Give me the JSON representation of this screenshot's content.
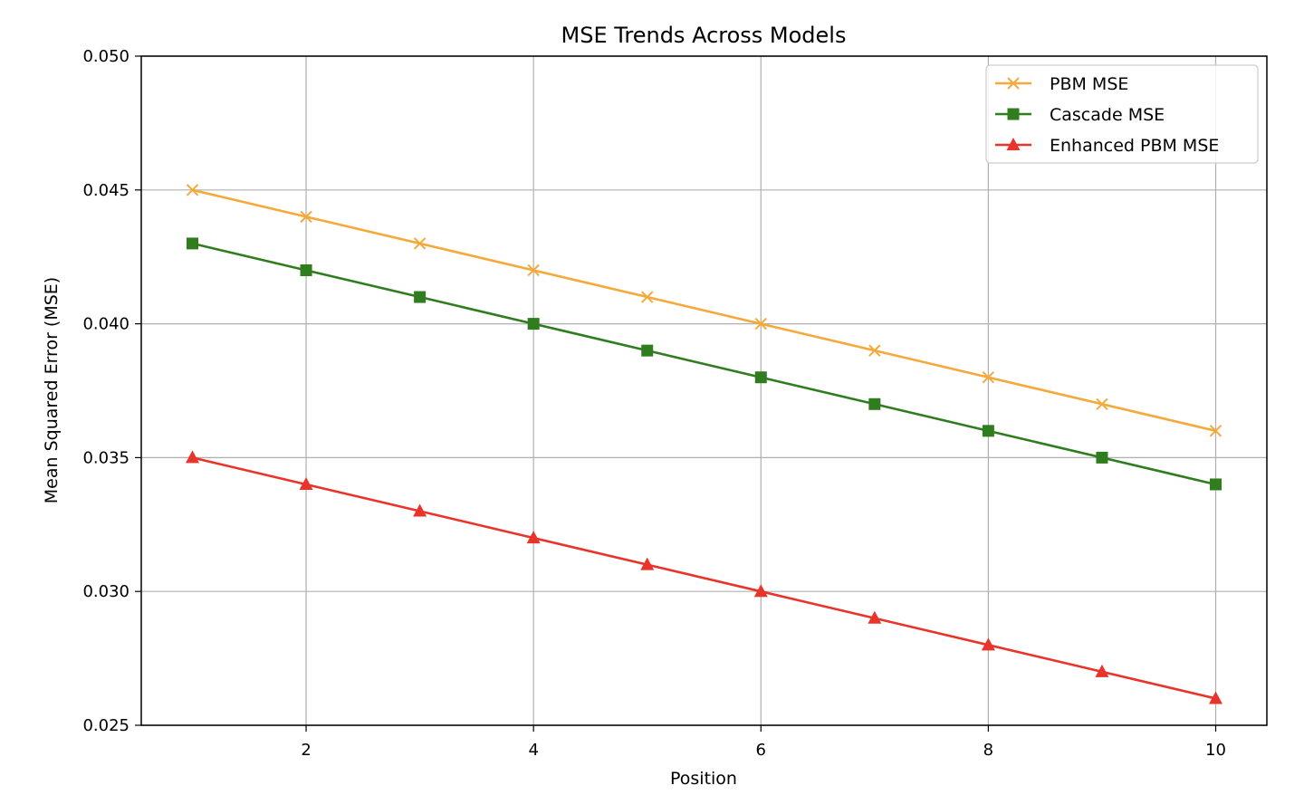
{
  "chart_data": {
    "type": "line",
    "title": "MSE Trends Across Models",
    "xlabel": "Position",
    "ylabel": "Mean Squared Error (MSE)",
    "x": [
      1,
      2,
      3,
      4,
      5,
      6,
      7,
      8,
      9,
      10
    ],
    "xlim": [
      0.55,
      10.45
    ],
    "ylim": [
      0.025,
      0.05
    ],
    "xticks": [
      2,
      4,
      6,
      8,
      10
    ],
    "xtick_labels": [
      "2",
      "4",
      "6",
      "8",
      "10"
    ],
    "yticks": [
      0.025,
      0.03,
      0.035,
      0.04,
      0.045,
      0.05
    ],
    "ytick_labels": [
      "0.025",
      "0.030",
      "0.035",
      "0.040",
      "0.045",
      "0.050"
    ],
    "grid": true,
    "legend_position": "top-right",
    "series": [
      {
        "name": "PBM MSE",
        "color": "#f4a93a",
        "marker": "x",
        "values": [
          0.045,
          0.044,
          0.043,
          0.042,
          0.041,
          0.04,
          0.039,
          0.038,
          0.037,
          0.036
        ]
      },
      {
        "name": "Cascade MSE",
        "color": "#2f7d1e",
        "marker": "square",
        "values": [
          0.043,
          0.042,
          0.041,
          0.04,
          0.039,
          0.038,
          0.037,
          0.036,
          0.035,
          0.034
        ]
      },
      {
        "name": "Enhanced PBM MSE",
        "color": "#e8342a",
        "marker": "triangle",
        "values": [
          0.035,
          0.034,
          0.033,
          0.032,
          0.031,
          0.03,
          0.029,
          0.028,
          0.027,
          0.026
        ]
      }
    ]
  }
}
